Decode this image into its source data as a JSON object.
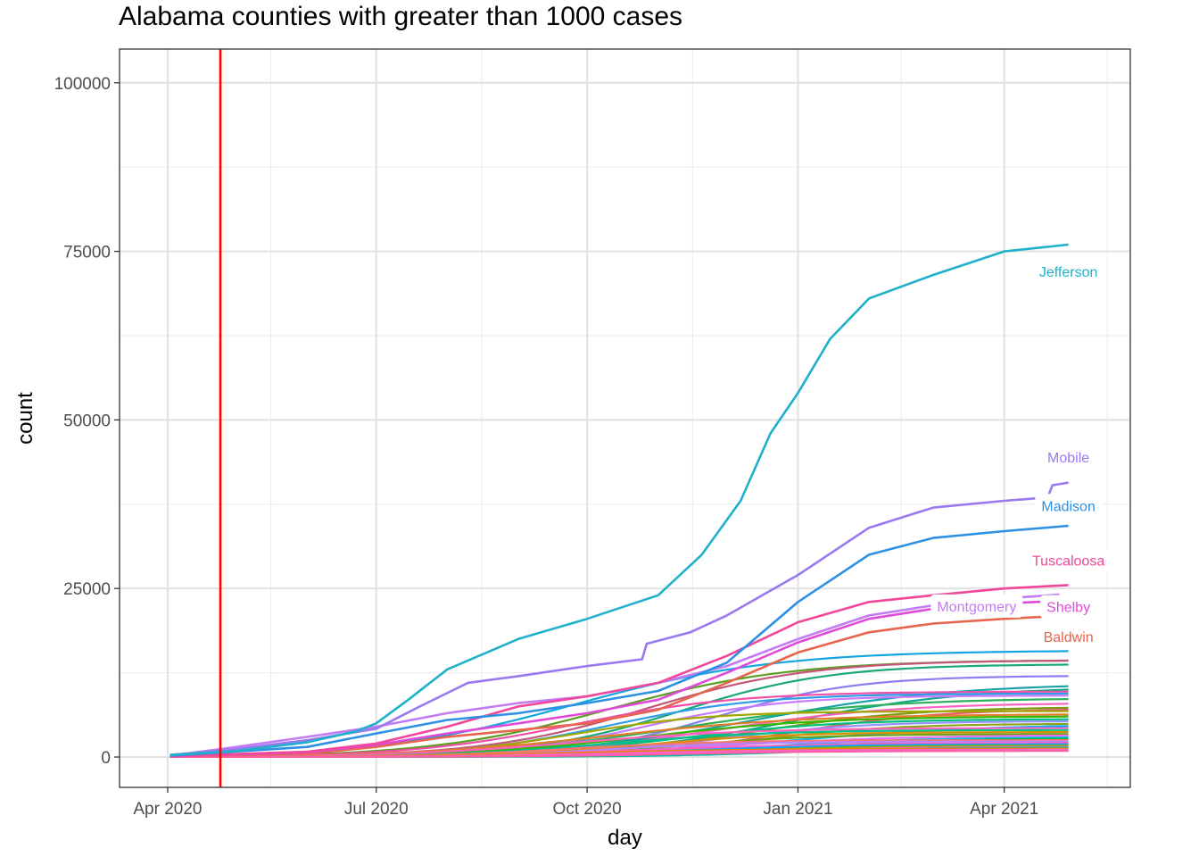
{
  "chart_data": {
    "type": "line",
    "title": "Alabama counties with greater than 1000 cases",
    "xlabel": "day",
    "ylabel": "count",
    "x_range": [
      "2020-03-11",
      "2021-05-26"
    ],
    "ylim": [
      -4500,
      105000
    ],
    "x_ticks": [
      {
        "date": "2020-04-01",
        "label": "Apr 2020"
      },
      {
        "date": "2020-07-01",
        "label": "Jul 2020"
      },
      {
        "date": "2020-10-01",
        "label": "Oct 2020"
      },
      {
        "date": "2021-01-01",
        "label": "Jan 2021"
      },
      {
        "date": "2021-04-01",
        "label": "Apr 2021"
      }
    ],
    "x_minor_ticks": [
      "2020-05-16",
      "2020-08-16",
      "2020-11-16",
      "2021-02-15",
      "2021-05-16"
    ],
    "y_ticks": [
      0,
      25000,
      50000,
      75000,
      100000
    ],
    "y_minor_ticks": [
      12500,
      37500,
      62500,
      87500
    ],
    "grid": true,
    "legend": "none",
    "reference_line": {
      "date": "2020-04-24",
      "color": "#ff0000"
    },
    "series": [
      {
        "name": "Jefferson",
        "color": "#1fb1c9",
        "label_at": [
          "2021-04-29",
          72000
        ],
        "points": [
          [
            "2020-04-02",
            300
          ],
          [
            "2020-05-01",
            900
          ],
          [
            "2020-06-01",
            2200
          ],
          [
            "2020-06-22",
            3800
          ],
          [
            "2020-07-01",
            5000
          ],
          [
            "2020-07-15",
            8500
          ],
          [
            "2020-08-01",
            13000
          ],
          [
            "2020-09-01",
            17500
          ],
          [
            "2020-10-01",
            20500
          ],
          [
            "2020-11-01",
            24000
          ],
          [
            "2020-11-20",
            30000
          ],
          [
            "2020-12-07",
            38000
          ],
          [
            "2020-12-20",
            48000
          ],
          [
            "2021-01-01",
            54000
          ],
          [
            "2021-01-15",
            62000
          ],
          [
            "2021-02-01",
            68000
          ],
          [
            "2021-03-01",
            71500
          ],
          [
            "2021-04-01",
            75000
          ],
          [
            "2021-04-29",
            76000
          ]
        ]
      },
      {
        "name": "Mobile",
        "color": "#9a79f0",
        "label_at": [
          "2021-04-29",
          44500
        ],
        "points": [
          [
            "2020-04-02",
            300
          ],
          [
            "2020-05-01",
            1200
          ],
          [
            "2020-06-01",
            2500
          ],
          [
            "2020-07-01",
            4200
          ],
          [
            "2020-07-20",
            7500
          ],
          [
            "2020-08-10",
            11000
          ],
          [
            "2020-09-01",
            12000
          ],
          [
            "2020-10-01",
            13500
          ],
          [
            "2020-10-25",
            14500
          ],
          [
            "2020-10-27",
            16800
          ],
          [
            "2020-11-15",
            18500
          ],
          [
            "2020-12-01",
            21000
          ],
          [
            "2021-01-01",
            27000
          ],
          [
            "2021-02-01",
            34000
          ],
          [
            "2021-03-01",
            37000
          ],
          [
            "2021-04-01",
            38000
          ],
          [
            "2021-04-20",
            38500
          ],
          [
            "2021-04-22",
            40300
          ],
          [
            "2021-04-29",
            40700
          ]
        ]
      },
      {
        "name": "Madison",
        "color": "#2d90e5",
        "label_at": [
          "2021-04-29",
          37300
        ],
        "points": [
          [
            "2020-04-02",
            200
          ],
          [
            "2020-06-01",
            1500
          ],
          [
            "2020-07-01",
            3500
          ],
          [
            "2020-08-01",
            5500
          ],
          [
            "2020-09-01",
            6500
          ],
          [
            "2020-10-01",
            8000
          ],
          [
            "2020-11-01",
            9800
          ],
          [
            "2020-12-01",
            14000
          ],
          [
            "2021-01-01",
            23000
          ],
          [
            "2021-02-01",
            30000
          ],
          [
            "2021-03-01",
            32500
          ],
          [
            "2021-04-01",
            33500
          ],
          [
            "2021-04-29",
            34300
          ]
        ]
      },
      {
        "name": "Tuscaloosa",
        "color": "#f0479a",
        "label_at": [
          "2021-04-29",
          29200
        ],
        "points": [
          [
            "2020-04-02",
            150
          ],
          [
            "2020-06-01",
            800
          ],
          [
            "2020-07-01",
            2000
          ],
          [
            "2020-08-01",
            4500
          ],
          [
            "2020-09-01",
            7500
          ],
          [
            "2020-10-01",
            9000
          ],
          [
            "2020-11-01",
            11000
          ],
          [
            "2020-12-01",
            15000
          ],
          [
            "2021-01-01",
            20000
          ],
          [
            "2021-02-01",
            23000
          ],
          [
            "2021-03-01",
            24000
          ],
          [
            "2021-04-01",
            25000
          ],
          [
            "2021-04-29",
            25500
          ]
        ]
      },
      {
        "name": "Montgomery",
        "color": "#c47bf3",
        "label_at": [
          "2021-03-20",
          22400
        ],
        "points": [
          [
            "2020-04-02",
            200
          ],
          [
            "2020-05-01",
            1500
          ],
          [
            "2020-06-01",
            3000
          ],
          [
            "2020-07-01",
            4500
          ],
          [
            "2020-08-01",
            6500
          ],
          [
            "2020-09-01",
            8000
          ],
          [
            "2020-10-01",
            9000
          ],
          [
            "2020-11-01",
            11000
          ],
          [
            "2020-12-01",
            13500
          ],
          [
            "2021-01-01",
            17500
          ],
          [
            "2021-02-01",
            21000
          ],
          [
            "2021-03-01",
            22500
          ],
          [
            "2021-04-01",
            23500
          ],
          [
            "2021-04-25",
            24100
          ]
        ]
      },
      {
        "name": "Shelby",
        "color": "#df4bd8",
        "label_at": [
          "2021-04-29",
          22300
        ],
        "points": [
          [
            "2020-04-02",
            100
          ],
          [
            "2020-06-01",
            700
          ],
          [
            "2020-07-01",
            1800
          ],
          [
            "2020-08-01",
            3500
          ],
          [
            "2020-09-01",
            5000
          ],
          [
            "2020-10-01",
            6500
          ],
          [
            "2020-11-01",
            8500
          ],
          [
            "2020-12-01",
            12500
          ],
          [
            "2021-01-01",
            17000
          ],
          [
            "2021-02-01",
            20500
          ],
          [
            "2021-03-01",
            22000
          ],
          [
            "2021-04-01",
            22800
          ],
          [
            "2021-04-29",
            23200
          ]
        ]
      },
      {
        "name": "Baldwin",
        "color": "#e6654c",
        "label_at": [
          "2021-04-29",
          17900
        ],
        "points": [
          [
            "2020-04-02",
            100
          ],
          [
            "2020-06-01",
            500
          ],
          [
            "2020-07-01",
            1500
          ],
          [
            "2020-08-01",
            3000
          ],
          [
            "2020-09-01",
            4000
          ],
          [
            "2020-10-01",
            5000
          ],
          [
            "2020-11-01",
            7000
          ],
          [
            "2020-12-01",
            11000
          ],
          [
            "2021-01-01",
            15500
          ],
          [
            "2021-02-01",
            18500
          ],
          [
            "2021-03-01",
            19800
          ],
          [
            "2021-04-01",
            20500
          ],
          [
            "2021-04-29",
            21000
          ]
        ]
      }
    ],
    "background_series": [
      {
        "color": "#12a6e0",
        "end": 15700
      },
      {
        "color": "#5a9e1f",
        "end": 14300
      },
      {
        "color": "#c4567a",
        "end": 14300
      },
      {
        "color": "#1aa77a",
        "end": 13700
      },
      {
        "color": "#8a7ef0",
        "end": 12000
      },
      {
        "color": "#16a2a8",
        "end": 10500
      },
      {
        "color": "#0fa78c",
        "end": 10000
      },
      {
        "color": "#f04fa8",
        "end": 9700
      },
      {
        "color": "#2f9de6",
        "end": 9400
      },
      {
        "color": "#c77cff",
        "end": 9100
      },
      {
        "color": "#2eb15a",
        "end": 8600
      },
      {
        "color": "#f763c4",
        "end": 7900
      },
      {
        "color": "#7d9a12",
        "end": 7300
      },
      {
        "color": "#e75a6c",
        "end": 7000
      },
      {
        "color": "#a3a500",
        "end": 6800
      },
      {
        "color": "#e07c2a",
        "end": 6300
      },
      {
        "color": "#39b600",
        "end": 6000
      },
      {
        "color": "#00bf7d",
        "end": 5600
      },
      {
        "color": "#9590ff",
        "end": 5300
      },
      {
        "color": "#8da11c",
        "end": 4900
      },
      {
        "color": "#00b0f6",
        "end": 4600
      },
      {
        "color": "#ff62bc",
        "end": 4300
      },
      {
        "color": "#00c08b",
        "end": 4000
      },
      {
        "color": "#d89000",
        "end": 3700
      },
      {
        "color": "#6aa214",
        "end": 3400
      },
      {
        "color": "#e76bf3",
        "end": 3200
      },
      {
        "color": "#00bbdb",
        "end": 2900
      },
      {
        "color": "#00ba38",
        "end": 2700
      },
      {
        "color": "#f8766d",
        "end": 2500
      },
      {
        "color": "#b983ff",
        "end": 2300
      },
      {
        "color": "#ff61c3",
        "end": 2100
      },
      {
        "color": "#00a9ff",
        "end": 1900
      },
      {
        "color": "#93aa00",
        "end": 1700
      },
      {
        "color": "#fd61d1",
        "end": 1500
      },
      {
        "color": "#00c1a3",
        "end": 1400
      },
      {
        "color": "#e58700",
        "end": 1250
      },
      {
        "color": "#ff67a4",
        "end": 1100
      },
      {
        "color": "#f564e3",
        "end": 1000
      },
      {
        "color": "#ff5fa0",
        "end": 900
      }
    ]
  }
}
